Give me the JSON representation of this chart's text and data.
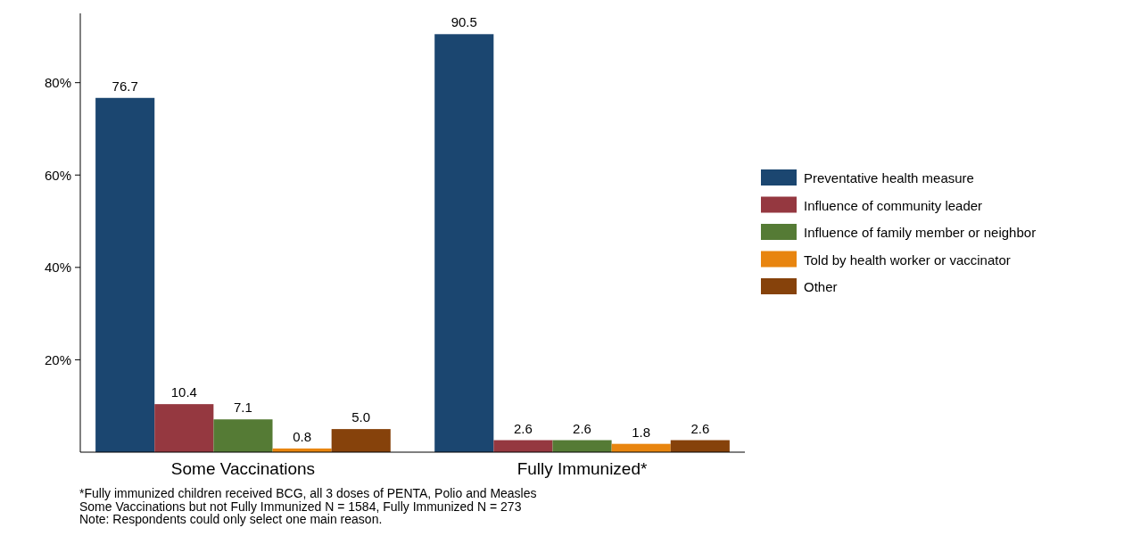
{
  "chart_data": {
    "type": "bar",
    "categories": [
      "Some Vaccinations",
      "Fully Immunized*"
    ],
    "series": [
      {
        "name": "Preventative health measure",
        "color": "#1b4670",
        "values": [
          76.7,
          90.5
        ],
        "value_labels": [
          "76.7",
          "90.5"
        ]
      },
      {
        "name": "Influence of community leader",
        "color": "#953840",
        "values": [
          10.4,
          2.6
        ],
        "value_labels": [
          "10.4",
          "2.6"
        ]
      },
      {
        "name": "Influence of family member or neighbor",
        "color": "#557b35",
        "values": [
          7.1,
          2.6
        ],
        "value_labels": [
          "7.1",
          "2.6"
        ]
      },
      {
        "name": "Told by health worker or vaccinator",
        "color": "#e8850f",
        "values": [
          0.8,
          1.8
        ],
        "value_labels": [
          "0.8",
          "1.8"
        ]
      },
      {
        "name": "Other",
        "color": "#86420b",
        "values": [
          5.0,
          2.6
        ],
        "value_labels": [
          "5.0",
          "2.6"
        ]
      }
    ],
    "ylim": [
      0,
      95
    ],
    "yticks": [
      {
        "value": 20,
        "label": "20%"
      },
      {
        "value": 40,
        "label": "40%"
      },
      {
        "value": 60,
        "label": "60%"
      },
      {
        "value": 80,
        "label": "80%"
      }
    ],
    "grid": false,
    "legend": "right",
    "annotations": [
      "*Fully immunized children received BCG, all 3 doses of PENTA, Polio and Measles",
      "Some Vaccinations but not Fully Immunized N = 1584, Fully Immunized N = 273",
      "Note: Respondents could only select one main reason."
    ]
  }
}
